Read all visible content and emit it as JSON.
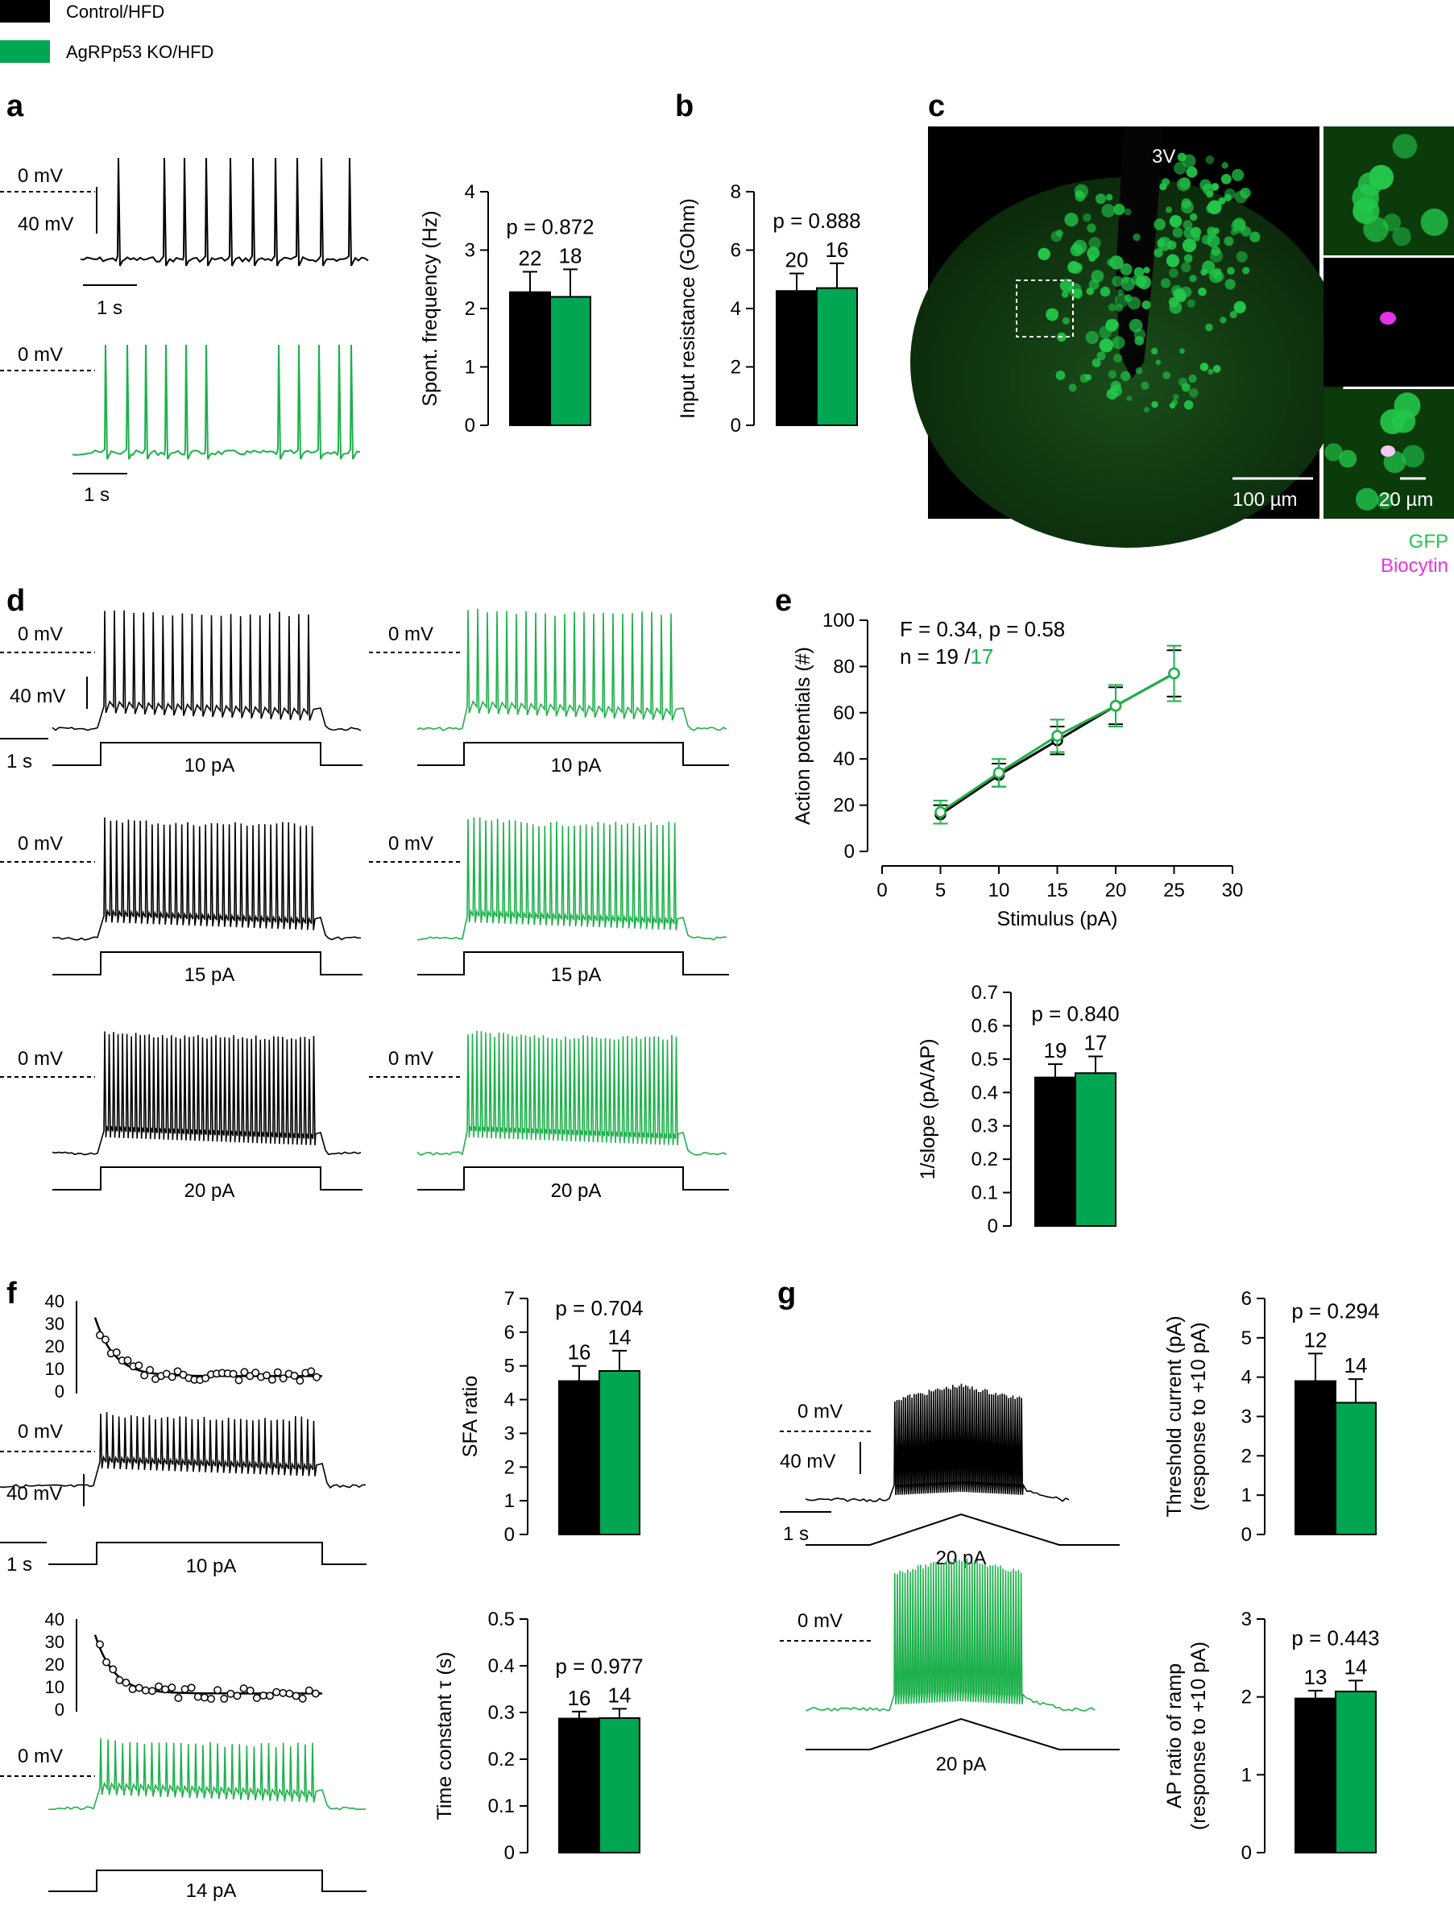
{
  "legend": {
    "control": {
      "label": "Control/HFD",
      "color": "#000000"
    },
    "ko": {
      "label": "AgRPp53 KO/HFD",
      "color": "#00A651"
    }
  },
  "colors": {
    "control": "#000000",
    "ko": "#1DB14B",
    "ko_bar": "#00A651",
    "biocytin": "#E633E6",
    "gfp": "#22C74A"
  },
  "panels": {
    "a": {
      "label": "a",
      "zero_mv": "0 mV",
      "scale_mv": "40 mV",
      "scale_s": "1 s"
    },
    "b": {
      "label": "b"
    },
    "c": {
      "label": "c",
      "ventricle": "3V",
      "scale_large": "100 µm",
      "scale_small": "20 µm",
      "gfp": "GFP",
      "biocytin": "Biocytin"
    },
    "d": {
      "label": "d",
      "zero_mv": "0 mV",
      "scale_mv": "40 mV",
      "scale_s": "1 s",
      "steps": [
        "10 pA",
        "15 pA",
        "20 pA"
      ]
    },
    "e": {
      "label": "e",
      "stat_line": "F = 0.34, p = 0.58",
      "n_prefix": "n = 19 /",
      "n_ko": "17"
    },
    "f": {
      "label": "f",
      "zero_mv": "0 mV",
      "scale_mv": "40 mV",
      "scale_s": "1 s",
      "step_top": "10 pA",
      "step_bottom": "14 pA",
      "inset_ticks": [
        "40",
        "30",
        "20",
        "10",
        "0"
      ]
    },
    "g": {
      "label": "g",
      "zero_mv": "0 mV",
      "scale_mv": "40 mV",
      "scale_s": "1 s",
      "ramp": "20 pA"
    }
  },
  "chart_data": [
    {
      "id": "spont_frequency",
      "type": "bar",
      "ylabel": "Spont. frequency (Hz)",
      "ylim": [
        0,
        4
      ],
      "yticks": [
        "0",
        "1",
        "2",
        "3",
        "4"
      ],
      "p_value": "p = 0.872",
      "series": [
        {
          "name": "Control/HFD",
          "value": 2.28,
          "err": 0.35,
          "n": "22"
        },
        {
          "name": "AgRPp53 KO/HFD",
          "value": 2.2,
          "err": 0.47,
          "n": "18"
        }
      ]
    },
    {
      "id": "input_resistance",
      "type": "bar",
      "ylabel": "Input resistance (GOhm)",
      "ylim": [
        0,
        8
      ],
      "yticks": [
        "0",
        "2",
        "4",
        "6",
        "8"
      ],
      "p_value": "p = 0.888",
      "series": [
        {
          "name": "Control/HFD",
          "value": 4.6,
          "err": 0.6,
          "n": "20"
        },
        {
          "name": "AgRPp53 KO/HFD",
          "value": 4.7,
          "err": 0.85,
          "n": "16"
        }
      ]
    },
    {
      "id": "action_potentials",
      "type": "line",
      "xlabel": "Stimulus (pA)",
      "ylabel": "Action potentials (#)",
      "xlim": [
        0,
        30
      ],
      "ylim": [
        0,
        100
      ],
      "xticks": [
        "0",
        "5",
        "10",
        "15",
        "20",
        "25",
        "30"
      ],
      "yticks": [
        "0",
        "20",
        "40",
        "60",
        "80",
        "100"
      ],
      "x": [
        5,
        10,
        15,
        20,
        25
      ],
      "series": [
        {
          "name": "Control/HFD",
          "values": [
            16,
            33,
            48,
            63,
            77
          ],
          "err": [
            4,
            5,
            6,
            8,
            10
          ]
        },
        {
          "name": "AgRPp53 KO/HFD",
          "values": [
            17,
            34,
            50,
            63,
            77
          ],
          "err": [
            5,
            6,
            7,
            9,
            12
          ]
        }
      ]
    },
    {
      "id": "inverse_slope",
      "type": "bar",
      "ylabel": "1/slope (pA/AP)",
      "ylim": [
        0,
        0.7
      ],
      "yticks": [
        "0",
        "0.1",
        "0.2",
        "0.3",
        "0.4",
        "0.5",
        "0.6",
        "0.7"
      ],
      "p_value": "p = 0.840",
      "series": [
        {
          "name": "Control/HFD",
          "value": 0.445,
          "err": 0.04,
          "n": "19"
        },
        {
          "name": "AgRPp53 KO/HFD",
          "value": 0.458,
          "err": 0.05,
          "n": "17"
        }
      ]
    },
    {
      "id": "sfa_ratio",
      "type": "bar",
      "ylabel": "SFA ratio",
      "ylim": [
        0,
        7
      ],
      "yticks": [
        "0",
        "1",
        "2",
        "3",
        "4",
        "5",
        "6",
        "7"
      ],
      "p_value": "p = 0.704",
      "series": [
        {
          "name": "Control/HFD",
          "value": 4.55,
          "err": 0.45,
          "n": "16"
        },
        {
          "name": "AgRPp53 KO/HFD",
          "value": 4.85,
          "err": 0.6,
          "n": "14"
        }
      ]
    },
    {
      "id": "time_constant",
      "type": "bar",
      "ylabel": "Time constant τ (s)",
      "ylim": [
        0,
        0.5
      ],
      "yticks": [
        "0",
        "0.1",
        "0.2",
        "0.3",
        "0.4",
        "0.5"
      ],
      "p_value": "p = 0.977",
      "series": [
        {
          "name": "Control/HFD",
          "value": 0.287,
          "err": 0.015,
          "n": "16"
        },
        {
          "name": "AgRPp53 KO/HFD",
          "value": 0.288,
          "err": 0.02,
          "n": "14"
        }
      ]
    },
    {
      "id": "threshold_current",
      "type": "bar",
      "ylabel": "Threshold current (pA)",
      "ylabel2": "(response to +10 pA)",
      "ylim": [
        0,
        6
      ],
      "yticks": [
        "0",
        "1",
        "2",
        "3",
        "4",
        "5",
        "6"
      ],
      "p_value": "p = 0.294",
      "series": [
        {
          "name": "Control/HFD",
          "value": 3.9,
          "err": 0.7,
          "n": "12"
        },
        {
          "name": "AgRPp53 KO/HFD",
          "value": 3.35,
          "err": 0.6,
          "n": "14"
        }
      ]
    },
    {
      "id": "ap_ratio_ramp",
      "type": "bar",
      "ylabel": "AP ratio of ramp",
      "ylabel2": "(response to +10 pA)",
      "ylim": [
        0,
        3
      ],
      "yticks": [
        "0",
        "1",
        "2",
        "3"
      ],
      "p_value": "p = 0.443",
      "series": [
        {
          "name": "Control/HFD",
          "value": 1.98,
          "err": 0.1,
          "n": "13"
        },
        {
          "name": "AgRPp53 KO/HFD",
          "value": 2.07,
          "err": 0.14,
          "n": "14"
        }
      ]
    }
  ]
}
